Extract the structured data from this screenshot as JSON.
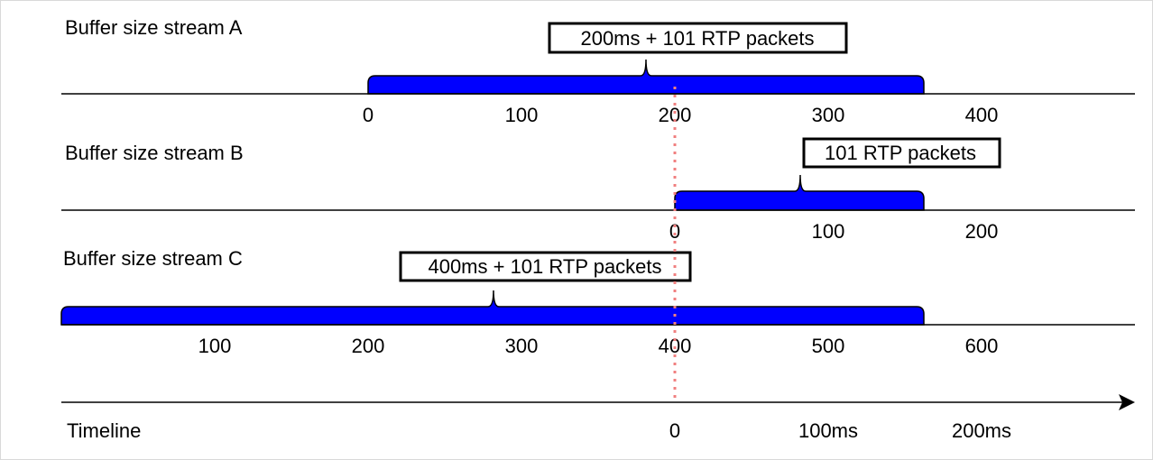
{
  "streams": [
    {
      "label": "Buffer size stream A",
      "callout": "200ms + 101 RTP packets",
      "ticks": [
        "0",
        "100",
        "200",
        "300",
        "400"
      ]
    },
    {
      "label": "Buffer size stream B",
      "callout": "101 RTP packets",
      "ticks": [
        "0",
        "100",
        "200"
      ]
    },
    {
      "label": "Buffer size stream C",
      "callout": "400ms + 101 RTP packets",
      "ticks": [
        "100",
        "200",
        "300",
        "400",
        "500",
        "600"
      ]
    }
  ],
  "timeline": {
    "label": "Timeline",
    "ticks": [
      "0",
      "100ms",
      "200ms"
    ]
  },
  "colors": {
    "buffer_fill": "#0000ff",
    "line": "#000000",
    "reference_line": "#f08080",
    "frame": "#d9d9d9"
  }
}
